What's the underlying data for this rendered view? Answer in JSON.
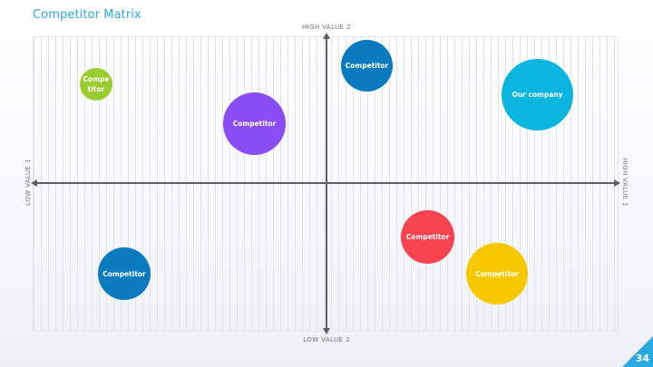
{
  "slide": {
    "title": "Competitor Matrix",
    "page_number": "34",
    "accent_color": "#29a9e1"
  },
  "axes": {
    "top": "HIGH VALUE 2",
    "bottom": "LOW VALUE 2",
    "left": "LOW VALUE 1",
    "right": "HIGH VALUE 1"
  },
  "bubbles": [
    {
      "label": "Compe\ntitor",
      "color": "#9acd32"
    },
    {
      "label": "Competitor",
      "color": "#0a7bbf"
    },
    {
      "label": "Our company",
      "color": "#0ab5e0"
    },
    {
      "label": "Competitor",
      "color": "#8a4cf5"
    },
    {
      "label": "Competitor",
      "color": "#f5434f"
    },
    {
      "label": "Competitor",
      "color": "#0a7bbf"
    },
    {
      "label": "Competitor",
      "color": "#f7c800"
    }
  ]
}
